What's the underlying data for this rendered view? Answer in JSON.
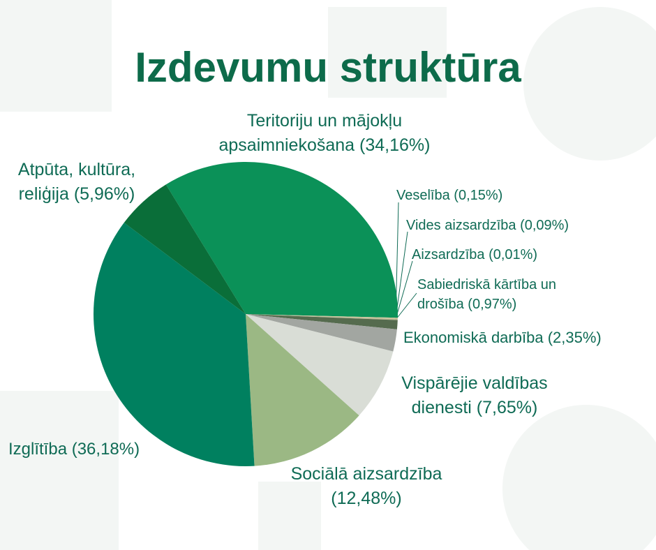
{
  "chart_data": {
    "type": "pie",
    "title": "Izdevumu struktūra",
    "categories": [
      "Teritoriju un mājokļu apsaimniekošana",
      "Veselība",
      "Vides aizsardzība",
      "Aizsardzība",
      "Sabiedriskā kārtība un drošība",
      "Ekonomiskā darbība",
      "Vispārējie valdības dienesti",
      "Sociālā aizsardzība",
      "Izglītība",
      "Atpūta, kultūra, reliģija"
    ],
    "values": [
      34.16,
      0.15,
      0.09,
      0.01,
      0.97,
      2.35,
      7.65,
      12.48,
      36.18,
      5.96
    ],
    "value_labels": [
      "(34,16%)",
      "(0,15%)",
      "(0,09%)",
      "(0,01%)",
      "(0,97%)",
      "(2,35%)",
      "(7,65%)",
      "(12,48%)",
      "(36,18%)",
      "(5,96%)"
    ],
    "colors": [
      "#0b9158",
      "#c9c39a",
      "#b5b58e",
      "#8a9a70",
      "#556b4e",
      "#a2a6a1",
      "#d9ddd6",
      "#9bb884",
      "#00805f",
      "#0a6e39"
    ]
  }
}
